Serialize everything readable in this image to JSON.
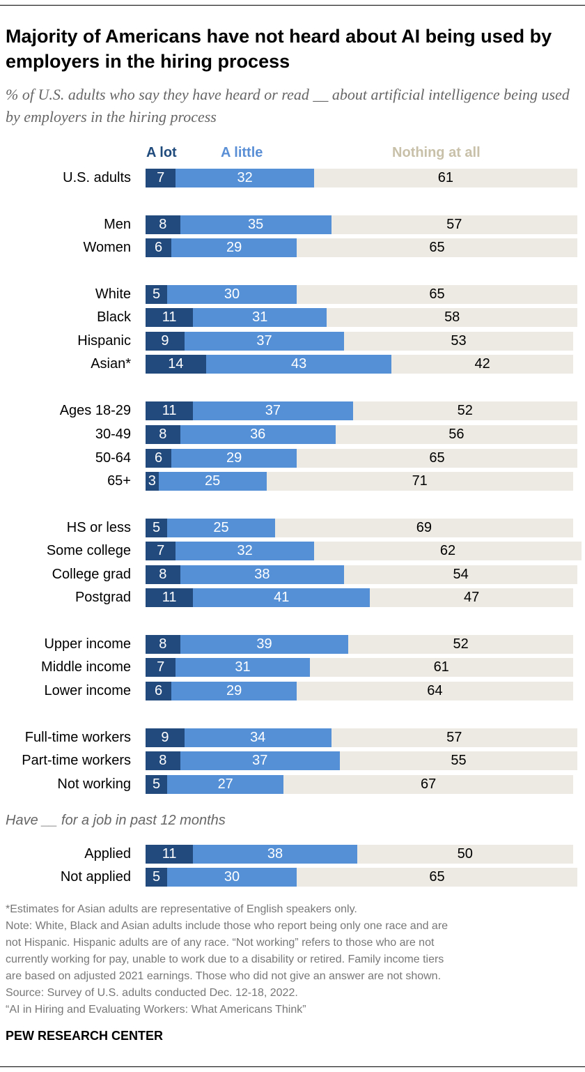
{
  "title": "Majority of Americans have not heard about AI being used by employers in the hiring process",
  "subtitle": "% of U.S. adults who say they have heard or read __ about artificial intelligence being used by employers in the hiring process",
  "chart_data": {
    "type": "bar",
    "orientation": "horizontal-stacked",
    "xlim": [
      0,
      100
    ],
    "legend_placement": "top",
    "series": [
      {
        "name": "A lot",
        "color": "#234a7c"
      },
      {
        "name": "A little",
        "color": "#5590d6"
      },
      {
        "name": "Nothing at all",
        "color": "#edeae3"
      }
    ],
    "legend_colors": [
      "#1f4a7c",
      "#5a8fd6",
      "#c8c0a8"
    ],
    "group_subtitle": "Have __ for a job in past 12 months",
    "rows": [
      {
        "label": "U.S. adults",
        "values": [
          7,
          32,
          61
        ]
      },
      {
        "label": "Men",
        "values": [
          8,
          35,
          57
        ]
      },
      {
        "label": "Women",
        "values": [
          6,
          29,
          65
        ]
      },
      {
        "label": "White",
        "values": [
          5,
          30,
          65
        ]
      },
      {
        "label": "Black",
        "values": [
          11,
          31,
          58
        ]
      },
      {
        "label": "Hispanic",
        "values": [
          9,
          37,
          53
        ]
      },
      {
        "label": "Asian*",
        "values": [
          14,
          43,
          42
        ]
      },
      {
        "label": "Ages 18-29",
        "values": [
          11,
          37,
          52
        ]
      },
      {
        "label": "30-49",
        "values": [
          8,
          36,
          56
        ]
      },
      {
        "label": "50-64",
        "values": [
          6,
          29,
          65
        ]
      },
      {
        "label": "65+",
        "values": [
          3,
          25,
          71
        ]
      },
      {
        "label": "HS or less",
        "values": [
          5,
          25,
          69
        ]
      },
      {
        "label": "Some college",
        "values": [
          7,
          32,
          62
        ]
      },
      {
        "label": "College grad",
        "values": [
          8,
          38,
          54
        ]
      },
      {
        "label": "Postgrad",
        "values": [
          11,
          41,
          47
        ]
      },
      {
        "label": "Upper income",
        "values": [
          8,
          39,
          52
        ]
      },
      {
        "label": "Middle income",
        "values": [
          7,
          31,
          61
        ]
      },
      {
        "label": "Lower income",
        "values": [
          6,
          29,
          64
        ]
      },
      {
        "label": "Full-time workers",
        "values": [
          9,
          34,
          57
        ]
      },
      {
        "label": "Part-time workers",
        "values": [
          8,
          37,
          55
        ]
      },
      {
        "label": "Not working",
        "values": [
          5,
          27,
          67
        ]
      },
      {
        "label": "Applied",
        "values": [
          11,
          38,
          50
        ]
      },
      {
        "label": "Not applied",
        "values": [
          5,
          30,
          65
        ]
      }
    ]
  },
  "notes": "*Estimates for Asian adults are representative of English speakers only.\nNote: White, Black and Asian adults include those who report being only one race and are\nnot Hispanic. Hispanic adults are of any race. “Not working” refers to those who are not\ncurrently working for pay, unable to work due to a disability or retired. Family income tiers\nare based on adjusted 2021 earnings. Those who did not give an answer are not shown.\nSource: Survey of U.S. adults conducted Dec. 12-18, 2022.\n“AI in Hiring and Evaluating Workers: What Americans Think”",
  "brand": "PEW RESEARCH CENTER"
}
